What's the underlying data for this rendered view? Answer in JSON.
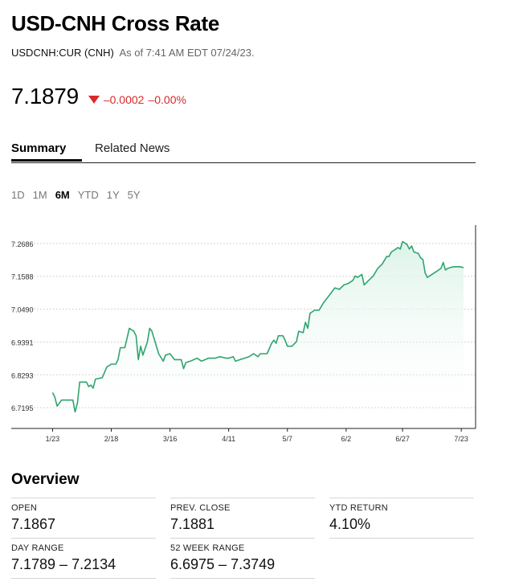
{
  "header": {
    "title": "USD-CNH Cross Rate",
    "ticker": "USDCNH:CUR (CNH)",
    "as_of": "As of 7:41 AM EDT 07/24/23."
  },
  "quote": {
    "price": "7.1879",
    "change": "–0.0002",
    "change_pct": "–0.00%",
    "direction": "down",
    "change_color": "#d62b2b"
  },
  "tabs": [
    {
      "label": "Summary",
      "active": true
    },
    {
      "label": "Related News",
      "active": false
    }
  ],
  "ranges": [
    {
      "label": "1D",
      "active": false
    },
    {
      "label": "1M",
      "active": false
    },
    {
      "label": "6M",
      "active": true
    },
    {
      "label": "YTD",
      "active": false
    },
    {
      "label": "1Y",
      "active": false
    },
    {
      "label": "5Y",
      "active": false
    }
  ],
  "chart_data": {
    "type": "area",
    "title": "",
    "xlabel": "",
    "ylabel": "",
    "line_color": "#2ea46f",
    "fill_color": "#e4f6ee",
    "grid": "dotted horizontal",
    "ylim": [
      6.65,
      7.33
    ],
    "xlim": [
      "2023-01-20",
      "2023-07-24"
    ],
    "x_ticks": [
      {
        "label": "1/23",
        "date": "2023-01-23"
      },
      {
        "label": "2/18",
        "date": "2023-02-18"
      },
      {
        "label": "3/16",
        "date": "2023-03-16"
      },
      {
        "label": "4/11",
        "date": "2023-04-11"
      },
      {
        "label": "5/7",
        "date": "2023-05-07"
      },
      {
        "label": "6/2",
        "date": "2023-06-02"
      },
      {
        "label": "6/27",
        "date": "2023-06-27"
      },
      {
        "label": "7/23",
        "date": "2023-07-23"
      }
    ],
    "y_ticks": [
      "6.7195",
      "6.8293",
      "6.9391",
      "7.0490",
      "7.1588",
      "7.2686"
    ],
    "series": [
      {
        "name": "",
        "points": [
          [
            "2023-01-23",
            6.77
          ],
          [
            "2023-01-24",
            6.755
          ],
          [
            "2023-01-25",
            6.725
          ],
          [
            "2023-01-27",
            6.745
          ],
          [
            "2023-01-30",
            6.745
          ],
          [
            "2023-02-01",
            6.745
          ],
          [
            "2023-02-02",
            6.705
          ],
          [
            "2023-02-03",
            6.735
          ],
          [
            "2023-02-04",
            6.805
          ],
          [
            "2023-02-07",
            6.805
          ],
          [
            "2023-02-08",
            6.79
          ],
          [
            "2023-02-09",
            6.795
          ],
          [
            "2023-02-10",
            6.785
          ],
          [
            "2023-02-11",
            6.815
          ],
          [
            "2023-02-14",
            6.82
          ],
          [
            "2023-02-16",
            6.855
          ],
          [
            "2023-02-18",
            6.865
          ],
          [
            "2023-02-20",
            6.865
          ],
          [
            "2023-02-21",
            6.88
          ],
          [
            "2023-02-22",
            6.92
          ],
          [
            "2023-02-24",
            6.92
          ],
          [
            "2023-02-26",
            6.985
          ],
          [
            "2023-02-28",
            6.975
          ],
          [
            "2023-03-01",
            6.96
          ],
          [
            "2023-03-02",
            6.88
          ],
          [
            "2023-03-03",
            6.925
          ],
          [
            "2023-03-04",
            6.895
          ],
          [
            "2023-03-06",
            6.94
          ],
          [
            "2023-03-07",
            6.985
          ],
          [
            "2023-03-08",
            6.975
          ],
          [
            "2023-03-09",
            6.95
          ],
          [
            "2023-03-11",
            6.9
          ],
          [
            "2023-03-13",
            6.875
          ],
          [
            "2023-03-14",
            6.895
          ],
          [
            "2023-03-16",
            6.9
          ],
          [
            "2023-03-18",
            6.88
          ],
          [
            "2023-03-21",
            6.88
          ],
          [
            "2023-03-22",
            6.85
          ],
          [
            "2023-03-23",
            6.87
          ],
          [
            "2023-03-25",
            6.875
          ],
          [
            "2023-03-28",
            6.885
          ],
          [
            "2023-03-30",
            6.875
          ],
          [
            "2023-04-02",
            6.885
          ],
          [
            "2023-04-05",
            6.885
          ],
          [
            "2023-04-07",
            6.89
          ],
          [
            "2023-04-10",
            6.885
          ],
          [
            "2023-04-11",
            6.885
          ],
          [
            "2023-04-13",
            6.89
          ],
          [
            "2023-04-14",
            6.875
          ],
          [
            "2023-04-16",
            6.88
          ],
          [
            "2023-04-18",
            6.885
          ],
          [
            "2023-04-20",
            6.89
          ],
          [
            "2023-04-22",
            6.9
          ],
          [
            "2023-04-24",
            6.89
          ],
          [
            "2023-04-25",
            6.9
          ],
          [
            "2023-04-28",
            6.9
          ],
          [
            "2023-04-30",
            6.935
          ],
          [
            "2023-05-01",
            6.945
          ],
          [
            "2023-05-02",
            6.935
          ],
          [
            "2023-05-03",
            6.96
          ],
          [
            "2023-05-05",
            6.96
          ],
          [
            "2023-05-06",
            6.945
          ],
          [
            "2023-05-07",
            6.925
          ],
          [
            "2023-05-09",
            6.925
          ],
          [
            "2023-05-11",
            6.94
          ],
          [
            "2023-05-12",
            6.975
          ],
          [
            "2023-05-14",
            6.97
          ],
          [
            "2023-05-15",
            7.005
          ],
          [
            "2023-05-16",
            6.985
          ],
          [
            "2023-05-17",
            7.035
          ],
          [
            "2023-05-19",
            7.045
          ],
          [
            "2023-05-21",
            7.045
          ],
          [
            "2023-05-23",
            7.07
          ],
          [
            "2023-05-25",
            7.09
          ],
          [
            "2023-05-26",
            7.1
          ],
          [
            "2023-05-28",
            7.12
          ],
          [
            "2023-05-30",
            7.115
          ],
          [
            "2023-06-01",
            7.13
          ],
          [
            "2023-06-03",
            7.135
          ],
          [
            "2023-06-05",
            7.145
          ],
          [
            "2023-06-06",
            7.16
          ],
          [
            "2023-06-07",
            7.155
          ],
          [
            "2023-06-09",
            7.165
          ],
          [
            "2023-06-10",
            7.13
          ],
          [
            "2023-06-12",
            7.145
          ],
          [
            "2023-06-14",
            7.16
          ],
          [
            "2023-06-16",
            7.185
          ],
          [
            "2023-06-18",
            7.2
          ],
          [
            "2023-06-20",
            7.225
          ],
          [
            "2023-06-21",
            7.225
          ],
          [
            "2023-06-22",
            7.24
          ],
          [
            "2023-06-24",
            7.25
          ],
          [
            "2023-06-25",
            7.255
          ],
          [
            "2023-06-26",
            7.25
          ],
          [
            "2023-06-27",
            7.275
          ],
          [
            "2023-06-29",
            7.265
          ],
          [
            "2023-06-30",
            7.25
          ],
          [
            "2023-07-01",
            7.26
          ],
          [
            "2023-07-02",
            7.24
          ],
          [
            "2023-07-04",
            7.235
          ],
          [
            "2023-07-05",
            7.22
          ],
          [
            "2023-07-06",
            7.215
          ],
          [
            "2023-07-07",
            7.17
          ],
          [
            "2023-07-08",
            7.155
          ],
          [
            "2023-07-10",
            7.165
          ],
          [
            "2023-07-12",
            7.175
          ],
          [
            "2023-07-14",
            7.185
          ],
          [
            "2023-07-15",
            7.205
          ],
          [
            "2023-07-16",
            7.18
          ],
          [
            "2023-07-17",
            7.185
          ],
          [
            "2023-07-19",
            7.19
          ],
          [
            "2023-07-22",
            7.191
          ],
          [
            "2023-07-24",
            7.188
          ]
        ]
      }
    ]
  },
  "overview": {
    "title": "Overview",
    "stats": [
      {
        "label": "OPEN",
        "value": "7.1867"
      },
      {
        "label": "PREV. CLOSE",
        "value": "7.1881"
      },
      {
        "label": "YTD RETURN",
        "value": "4.10%"
      },
      {
        "label": "DAY RANGE",
        "value": "7.1789 – 7.2134"
      },
      {
        "label": "52 WEEK RANGE",
        "value": "6.6975 – 7.3749"
      }
    ]
  }
}
